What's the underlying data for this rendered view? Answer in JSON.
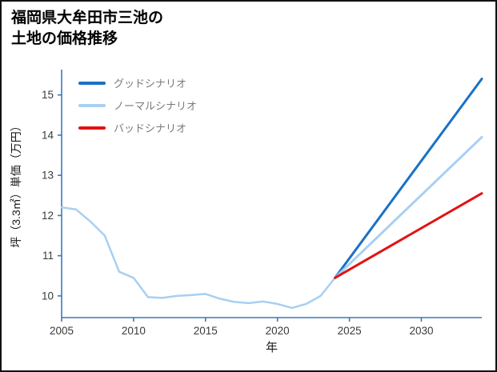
{
  "page": {
    "title_line1": "福岡県大牟田市三池の",
    "title_line2": "土地の価格推移"
  },
  "chart_data": {
    "type": "line",
    "title": "福岡県大牟田市三池の土地の価格推移",
    "xlabel": "年",
    "ylabel": "坪（3.3㎡）単価（万円）",
    "xlim": [
      2005,
      2034.2
    ],
    "ylim": [
      9.46,
      15.63
    ],
    "xticks": [
      2005,
      2010,
      2015,
      2020,
      2025,
      2030
    ],
    "yticks": [
      10,
      11,
      12,
      13,
      14,
      15
    ],
    "grid": false,
    "legend_position": "top-left",
    "axis_color": "#3e77bd",
    "tick_label_color": "#3a3a3a",
    "axis_label_color": "#1a1a1a",
    "legend": [
      {
        "label": "グッドシナリオ",
        "color": "#1a72c4"
      },
      {
        "label": "ノーマルシナリオ",
        "color": "#a9cff2"
      },
      {
        "label": "バッドシナリオ",
        "color": "#e31212"
      }
    ],
    "series": [
      {
        "id": "historical",
        "name": "historical",
        "color": "#a9cff2",
        "width": 2.5,
        "x": [
          2005,
          2006,
          2007,
          2008,
          2009,
          2010,
          2011,
          2012,
          2013,
          2014,
          2015,
          2016,
          2017,
          2018,
          2019,
          2020,
          2021,
          2022,
          2023,
          2024
        ],
        "values": [
          12.2,
          12.15,
          11.85,
          11.5,
          10.6,
          10.45,
          9.97,
          9.95,
          10.0,
          10.02,
          10.05,
          9.93,
          9.85,
          9.82,
          9.86,
          9.8,
          9.7,
          9.8,
          10.0,
          10.45
        ]
      },
      {
        "id": "good-scenario",
        "name": "グッドシナリオ",
        "color": "#1a72c4",
        "width": 3,
        "x": [
          2024,
          2034.2
        ],
        "values": [
          10.45,
          15.4
        ]
      },
      {
        "id": "normal-scenario",
        "name": "ノーマルシナリオ",
        "color": "#a9cff2",
        "width": 3,
        "x": [
          2024,
          2034.2
        ],
        "values": [
          10.45,
          13.95
        ]
      },
      {
        "id": "bad-scenario",
        "name": "バッドシナリオ",
        "color": "#e31212",
        "width": 3,
        "x": [
          2024,
          2034.2
        ],
        "values": [
          10.45,
          12.55
        ]
      }
    ]
  }
}
